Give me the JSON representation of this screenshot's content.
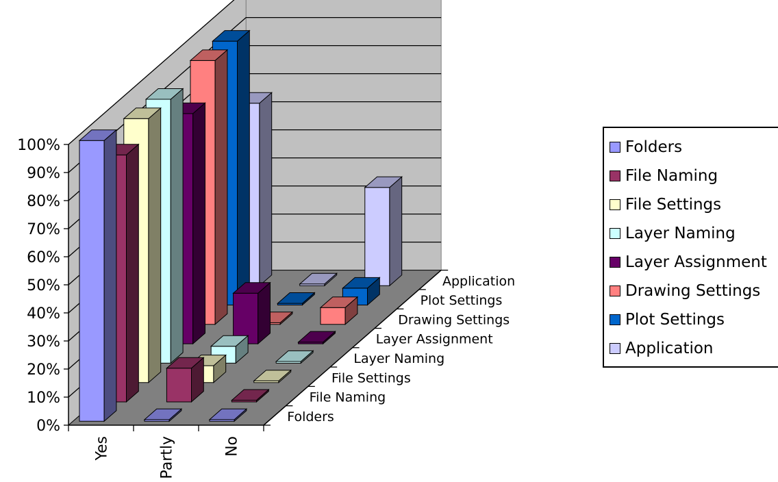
{
  "chart_data": {
    "type": "bar",
    "variant": "3d-column",
    "categories": [
      "Yes",
      "Partly",
      "No"
    ],
    "series": [
      {
        "name": "Folders",
        "color": "#9999FF",
        "values": [
          100,
          0,
          0
        ]
      },
      {
        "name": "File Naming",
        "color": "#993366",
        "values": [
          88,
          12,
          0
        ]
      },
      {
        "name": "File Settings",
        "color": "#FFFFCC",
        "values": [
          94,
          6,
          0
        ]
      },
      {
        "name": "Layer Naming",
        "color": "#CCFFFF",
        "values": [
          94,
          6,
          0
        ]
      },
      {
        "name": "Layer Assignment",
        "color": "#660066",
        "values": [
          82,
          18,
          0
        ]
      },
      {
        "name": "Drawing Settings",
        "color": "#FF8080",
        "values": [
          94,
          0,
          6
        ]
      },
      {
        "name": "Plot Settings",
        "color": "#0066CC",
        "values": [
          94,
          0,
          6
        ]
      },
      {
        "name": "Application",
        "color": "#CCCCFF",
        "values": [
          65,
          0,
          35
        ]
      }
    ],
    "y_ticks": [
      "0%",
      "10%",
      "20%",
      "30%",
      "40%",
      "50%",
      "60%",
      "70%",
      "80%",
      "90%",
      "100%"
    ],
    "ylim": [
      0,
      100
    ],
    "y_unit": "%",
    "grid": true,
    "legend_position": "right"
  }
}
